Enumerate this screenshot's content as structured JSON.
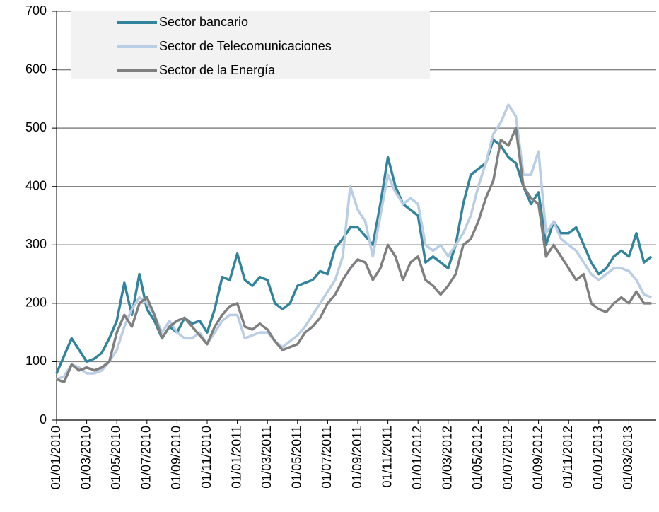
{
  "chart_data": {
    "type": "line",
    "categories": [
      "01/01/2010",
      null,
      null,
      null,
      "01/03/2010",
      null,
      null,
      null,
      "01/05/2010",
      null,
      null,
      null,
      "01/07/2010",
      null,
      null,
      null,
      "01/09/2010",
      null,
      null,
      null,
      "01/11/2010",
      null,
      null,
      null,
      "01/01/2011",
      null,
      null,
      null,
      "01/03/2011",
      null,
      null,
      null,
      "01/05/2011",
      null,
      null,
      null,
      "01/07/2011",
      null,
      null,
      null,
      "01/09/2011",
      null,
      null,
      null,
      "01/11/2011",
      null,
      null,
      null,
      "01/01/2012",
      null,
      null,
      null,
      "01/03/2012",
      null,
      null,
      null,
      "01/05/2012",
      null,
      null,
      null,
      "01/07/2012",
      null,
      null,
      null,
      "01/09/2012",
      null,
      null,
      null,
      "01/11/2012",
      null,
      null,
      null,
      "01/01/2013",
      null,
      null,
      null,
      "01/03/2013",
      null,
      null,
      null
    ],
    "series": [
      {
        "name": "Sector bancario",
        "color": "#31849b",
        "values": [
          80,
          110,
          140,
          120,
          100,
          105,
          115,
          140,
          170,
          235,
          180,
          250,
          190,
          170,
          140,
          160,
          150,
          175,
          165,
          170,
          150,
          190,
          245,
          240,
          285,
          240,
          230,
          245,
          240,
          200,
          190,
          200,
          230,
          235,
          240,
          255,
          250,
          295,
          310,
          330,
          330,
          315,
          300,
          370,
          450,
          400,
          370,
          360,
          350,
          270,
          280,
          270,
          260,
          300,
          370,
          420,
          430,
          440,
          480,
          470,
          450,
          440,
          400,
          370,
          390,
          300,
          340,
          320,
          320,
          330,
          300,
          270,
          250,
          260,
          280,
          290,
          280,
          320,
          270,
          280
        ]
      },
      {
        "name": "Sector de Telecomunicaciones",
        "color": "#b9cde5",
        "values": [
          70,
          75,
          95,
          90,
          80,
          80,
          85,
          100,
          120,
          160,
          190,
          210,
          200,
          180,
          150,
          170,
          150,
          140,
          140,
          150,
          130,
          150,
          170,
          180,
          180,
          140,
          145,
          150,
          150,
          135,
          125,
          135,
          145,
          160,
          180,
          200,
          220,
          240,
          280,
          400,
          360,
          340,
          280,
          350,
          420,
          390,
          370,
          380,
          370,
          300,
          290,
          300,
          280,
          300,
          320,
          350,
          400,
          440,
          490,
          510,
          540,
          520,
          420,
          420,
          460,
          320,
          340,
          310,
          300,
          290,
          270,
          250,
          240,
          250,
          260,
          260,
          255,
          240,
          215,
          210
        ]
      },
      {
        "name": "Sector de la Energía",
        "color": "#7f7f7f",
        "values": [
          70,
          65,
          95,
          85,
          90,
          85,
          90,
          100,
          150,
          180,
          160,
          200,
          210,
          180,
          140,
          160,
          170,
          175,
          160,
          145,
          130,
          160,
          180,
          195,
          200,
          160,
          155,
          165,
          155,
          135,
          120,
          125,
          130,
          150,
          160,
          175,
          200,
          215,
          240,
          260,
          275,
          270,
          240,
          260,
          300,
          280,
          240,
          270,
          280,
          240,
          230,
          215,
          230,
          250,
          300,
          310,
          340,
          380,
          410,
          480,
          470,
          500,
          400,
          380,
          370,
          280,
          300,
          280,
          260,
          240,
          250,
          200,
          190,
          185,
          200,
          210,
          200,
          220,
          200,
          200
        ]
      }
    ],
    "ylim": [
      0,
      700
    ],
    "yticks": [
      0,
      100,
      200,
      300,
      400,
      500,
      600,
      700
    ],
    "grid": true,
    "legend": "top-left"
  }
}
